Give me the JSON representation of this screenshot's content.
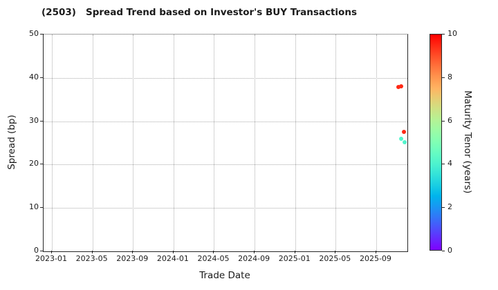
{
  "window": {
    "title": "(2503)   Spread Trend based on Investor's BUY Transactions"
  },
  "chart_data": {
    "type": "scatter",
    "title": "(2503)   Spread Trend based on Investor's BUY Transactions",
    "xlabel": "Trade Date",
    "ylabel": "Spread (bp)",
    "xlim": [
      "2022-12",
      "2025-12"
    ],
    "ylim": [
      0,
      50
    ],
    "yticks": [
      0,
      10,
      20,
      30,
      40,
      50
    ],
    "xtick_labels": [
      "2023-01",
      "2023-05",
      "2023-09",
      "2024-01",
      "2024-05",
      "2024-09",
      "2025-01",
      "2025-05",
      "2025-09"
    ],
    "xtick_interval_months": 4,
    "grid": true,
    "legend": "none",
    "colorbar": {
      "label": "Maturity Tenor (years)",
      "min": 0,
      "max": 10,
      "ticks": [
        0,
        2,
        4,
        6,
        8,
        10
      ],
      "colormap": "rainbow"
    },
    "points": [
      {
        "date": "2025-11-07",
        "spread_bp": 37.9,
        "maturity_tenor_years": 9.5
      },
      {
        "date": "2025-11-16",
        "spread_bp": 38.1,
        "maturity_tenor_years": 9.5
      },
      {
        "date": "2025-11-23",
        "spread_bp": 27.6,
        "maturity_tenor_years": 9.5
      },
      {
        "date": "2025-11-15",
        "spread_bp": 26.0,
        "maturity_tenor_years": 4.1
      },
      {
        "date": "2025-11-25",
        "spread_bp": 25.1,
        "maturity_tenor_years": 4.1
      }
    ]
  },
  "colors": {
    "background": "#ffffff",
    "spine": "#262626",
    "grid": "#aaaaaa",
    "text": "#1a1a1a",
    "marker_long_tenor": "#fb2a1a",
    "marker_short_tenor": "#3ae4cf"
  }
}
